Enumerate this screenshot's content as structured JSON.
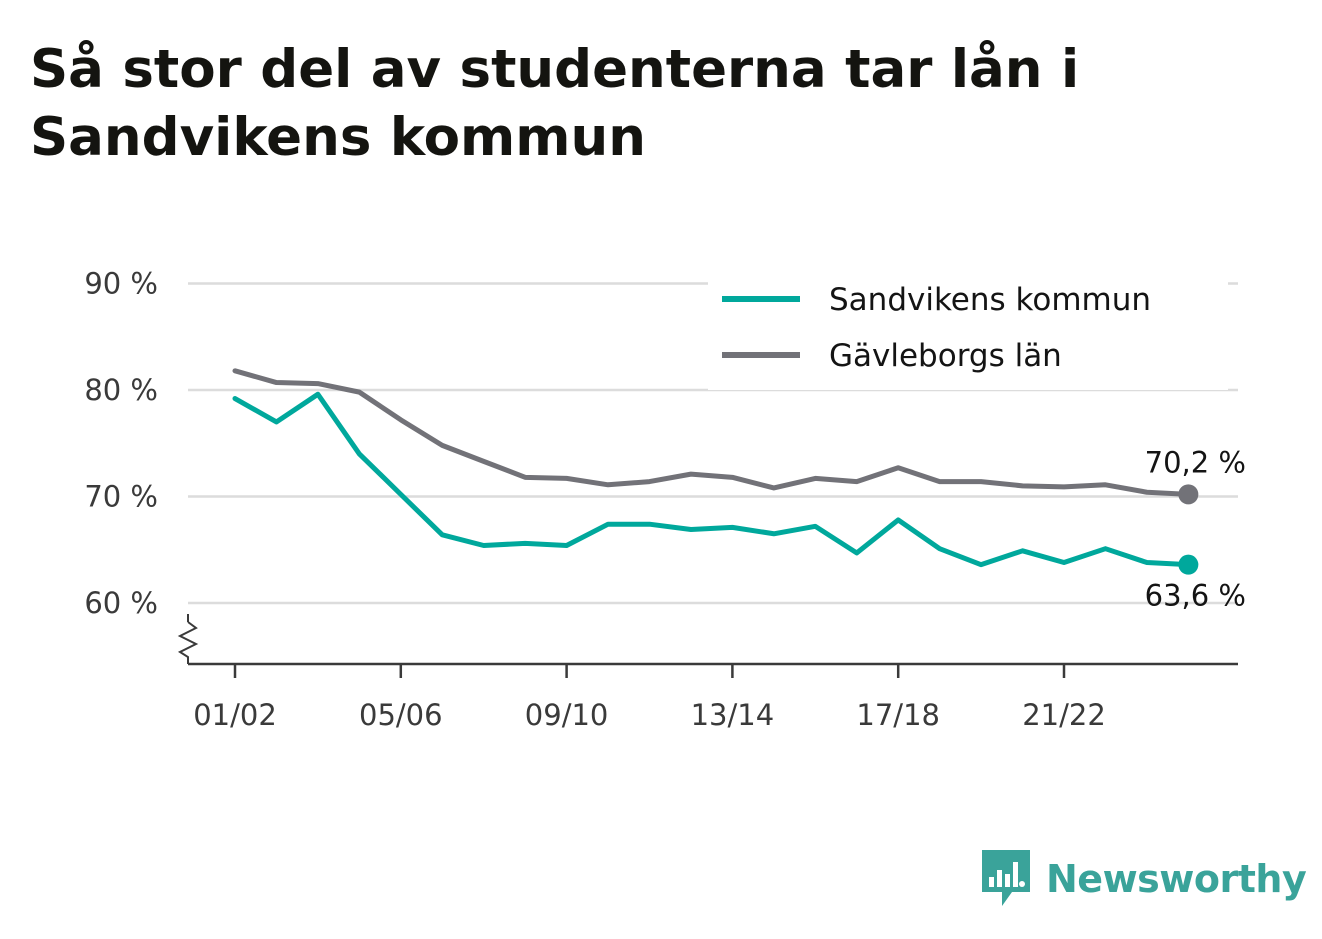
{
  "title": "Så stor del av studenterna tar lån i Sandvikens kommun",
  "brand": {
    "name": "Newsworthy",
    "icon": "newsworthy-logo-icon",
    "color": "#3aa39a"
  },
  "chart_data": {
    "type": "line",
    "title": "Så stor del av studenterna tar lån i Sandvikens kommun",
    "x": [
      "01/02",
      "02/03",
      "03/04",
      "04/05",
      "05/06",
      "06/07",
      "07/08",
      "08/09",
      "09/10",
      "10/11",
      "11/12",
      "12/13",
      "13/14",
      "14/15",
      "15/16",
      "16/17",
      "17/18",
      "18/19",
      "19/20",
      "20/21",
      "21/22",
      "22/23",
      "23/24",
      "24/25"
    ],
    "x_tick_labels": [
      "01/02",
      "05/06",
      "09/10",
      "13/14",
      "17/18",
      "21/22"
    ],
    "y_ticks": [
      60,
      70,
      80,
      90
    ],
    "y_tick_labels": [
      "60 %",
      "70 %",
      "80 %",
      "90 %"
    ],
    "ylim": [
      54,
      90
    ],
    "y_axis_broken": true,
    "grid": true,
    "legend_position": "top-right",
    "series": [
      {
        "name": "Sandvikens kommun",
        "color": "#00a89c",
        "values": [
          79.2,
          77.0,
          79.6,
          74.0,
          70.2,
          66.4,
          65.4,
          65.6,
          65.4,
          67.4,
          67.4,
          66.9,
          67.1,
          66.5,
          67.2,
          64.7,
          67.8,
          65.1,
          63.6,
          64.9,
          63.8,
          65.1,
          63.8,
          63.6
        ],
        "end_label": "63,6 %"
      },
      {
        "name": "Gävleborgs län",
        "color": "#727278",
        "values": [
          81.8,
          80.7,
          80.6,
          79.8,
          77.2,
          74.8,
          73.3,
          71.8,
          71.7,
          71.1,
          71.4,
          72.1,
          71.8,
          70.8,
          71.7,
          71.4,
          72.7,
          71.4,
          71.4,
          71.0,
          70.9,
          71.1,
          70.4,
          70.2
        ],
        "end_label": "70,2 %"
      }
    ]
  }
}
